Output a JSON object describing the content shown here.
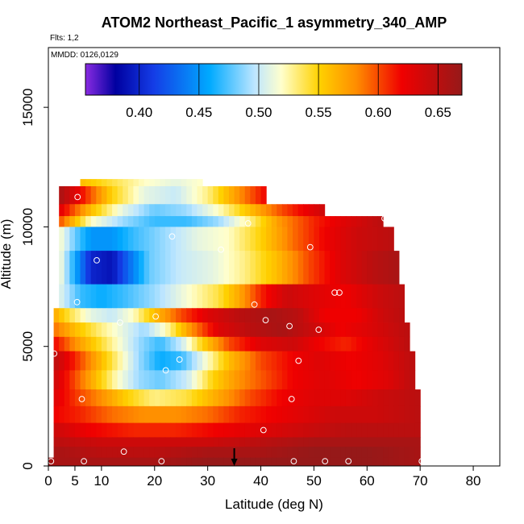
{
  "chart_data": {
    "type": "heatmap",
    "title": "ATOM2 Northeast_Pacific_1 asymmetry_340_AMP",
    "flights_label": "Flts: 1,2",
    "mmdd_label": "MMDD: 0126,0129",
    "xlabel": "Latitude (deg N)",
    "ylabel": "Altitude (m)",
    "xlim": [
      0,
      85
    ],
    "ylim": [
      0,
      17500
    ],
    "x_ticks": [
      0,
      5,
      10,
      20,
      30,
      40,
      50,
      60,
      70,
      80
    ],
    "y_ticks": [
      0,
      5000,
      10000,
      15000
    ],
    "colorbar": {
      "range": [
        0.355,
        0.67
      ],
      "ticks": [
        0.4,
        0.45,
        0.5,
        0.55,
        0.6,
        0.65
      ],
      "tick_labels": [
        "0.40",
        "0.45",
        "0.50",
        "0.55",
        "0.60",
        "0.65"
      ]
    },
    "marker_latitude": 35,
    "bands": [
      {
        "alt_range": [
          11700,
          12000
        ],
        "lat_range": [
          6,
          29
        ],
        "profile": [
          [
            6,
            0.56
          ],
          [
            12,
            0.54
          ],
          [
            18,
            0.52
          ],
          [
            24,
            0.51
          ],
          [
            29,
            0.52
          ]
        ]
      },
      {
        "alt_range": [
          10950,
          11700
        ],
        "lat_range": [
          2,
          41
        ],
        "profile": [
          [
            2,
            0.66
          ],
          [
            6,
            0.62
          ],
          [
            12,
            0.55
          ],
          [
            18,
            0.51
          ],
          [
            24,
            0.5
          ],
          [
            30,
            0.53
          ],
          [
            36,
            0.58
          ],
          [
            41,
            0.62
          ]
        ]
      },
      {
        "alt_range": [
          10450,
          10950
        ],
        "lat_range": [
          2,
          52
        ],
        "profile": [
          [
            2,
            0.63
          ],
          [
            8,
            0.56
          ],
          [
            14,
            0.51
          ],
          [
            20,
            0.48
          ],
          [
            26,
            0.49
          ],
          [
            32,
            0.52
          ],
          [
            38,
            0.56
          ],
          [
            44,
            0.6
          ],
          [
            52,
            0.64
          ]
        ]
      },
      {
        "alt_range": [
          10000,
          10450
        ],
        "lat_range": [
          2,
          63
        ],
        "profile": [
          [
            2,
            0.6
          ],
          [
            8,
            0.52
          ],
          [
            14,
            0.49
          ],
          [
            20,
            0.47
          ],
          [
            26,
            0.47
          ],
          [
            32,
            0.49
          ],
          [
            38,
            0.53
          ],
          [
            44,
            0.58
          ],
          [
            50,
            0.61
          ],
          [
            56,
            0.63
          ],
          [
            63,
            0.65
          ]
        ]
      },
      {
        "alt_range": [
          9000,
          10000
        ],
        "lat_range": [
          2,
          65
        ],
        "profile": [
          [
            2,
            0.52
          ],
          [
            5,
            0.48
          ],
          [
            8,
            0.45
          ],
          [
            12,
            0.45
          ],
          [
            16,
            0.47
          ],
          [
            22,
            0.49
          ],
          [
            28,
            0.51
          ],
          [
            34,
            0.52
          ],
          [
            40,
            0.55
          ],
          [
            46,
            0.59
          ],
          [
            52,
            0.62
          ],
          [
            58,
            0.64
          ],
          [
            65,
            0.65
          ]
        ]
      },
      {
        "alt_range": [
          7600,
          9000
        ],
        "lat_range": [
          2,
          66
        ],
        "profile": [
          [
            2,
            0.52
          ],
          [
            5,
            0.46
          ],
          [
            8,
            0.4
          ],
          [
            12,
            0.39
          ],
          [
            15,
            0.43
          ],
          [
            19,
            0.48
          ],
          [
            25,
            0.5
          ],
          [
            31,
            0.51
          ],
          [
            37,
            0.53
          ],
          [
            43,
            0.56
          ],
          [
            49,
            0.6
          ],
          [
            55,
            0.63
          ],
          [
            61,
            0.65
          ],
          [
            66,
            0.66
          ]
        ]
      },
      {
        "alt_range": [
          6600,
          7600
        ],
        "lat_range": [
          2,
          67
        ],
        "profile": [
          [
            2,
            0.51
          ],
          [
            6,
            0.47
          ],
          [
            10,
            0.46
          ],
          [
            14,
            0.47
          ],
          [
            20,
            0.49
          ],
          [
            27,
            0.52
          ],
          [
            32,
            0.54
          ],
          [
            36,
            0.57
          ],
          [
            40,
            0.61
          ],
          [
            45,
            0.64
          ],
          [
            50,
            0.63
          ],
          [
            56,
            0.62
          ],
          [
            62,
            0.64
          ],
          [
            67,
            0.65
          ]
        ]
      },
      {
        "alt_range": [
          6000,
          6600
        ],
        "lat_range": [
          1,
          67
        ],
        "profile": [
          [
            1,
            0.57
          ],
          [
            4,
            0.54
          ],
          [
            8,
            0.51
          ],
          [
            12,
            0.5
          ],
          [
            16,
            0.52
          ],
          [
            20,
            0.56
          ],
          [
            25,
            0.6
          ],
          [
            30,
            0.63
          ],
          [
            36,
            0.65
          ],
          [
            42,
            0.66
          ],
          [
            47,
            0.65
          ],
          [
            52,
            0.62
          ],
          [
            58,
            0.62
          ],
          [
            63,
            0.64
          ],
          [
            67,
            0.65
          ]
        ]
      },
      {
        "alt_range": [
          5400,
          6000
        ],
        "lat_range": [
          1,
          68
        ],
        "profile": [
          [
            1,
            0.59
          ],
          [
            5,
            0.56
          ],
          [
            10,
            0.53
          ],
          [
            14,
            0.51
          ],
          [
            18,
            0.49
          ],
          [
            22,
            0.52
          ],
          [
            27,
            0.58
          ],
          [
            32,
            0.63
          ],
          [
            38,
            0.65
          ],
          [
            44,
            0.66
          ],
          [
            50,
            0.64
          ],
          [
            55,
            0.62
          ],
          [
            60,
            0.63
          ],
          [
            64,
            0.64
          ],
          [
            68,
            0.65
          ]
        ]
      },
      {
        "alt_range": [
          4800,
          5400
        ],
        "lat_range": [
          1,
          68
        ],
        "profile": [
          [
            1,
            0.62
          ],
          [
            5,
            0.58
          ],
          [
            9,
            0.55
          ],
          [
            13,
            0.52
          ],
          [
            17,
            0.49
          ],
          [
            21,
            0.47
          ],
          [
            25,
            0.5
          ],
          [
            29,
            0.55
          ],
          [
            34,
            0.6
          ],
          [
            40,
            0.63
          ],
          [
            46,
            0.64
          ],
          [
            51,
            0.62
          ],
          [
            56,
            0.61
          ],
          [
            62,
            0.63
          ],
          [
            68,
            0.65
          ]
        ]
      },
      {
        "alt_range": [
          4000,
          4800
        ],
        "lat_range": [
          1,
          69
        ],
        "profile": [
          [
            1,
            0.65
          ],
          [
            5,
            0.61
          ],
          [
            9,
            0.57
          ],
          [
            13,
            0.53
          ],
          [
            17,
            0.49
          ],
          [
            21,
            0.46
          ],
          [
            25,
            0.47
          ],
          [
            29,
            0.51
          ],
          [
            34,
            0.56
          ],
          [
            40,
            0.6
          ],
          [
            46,
            0.62
          ],
          [
            51,
            0.63
          ],
          [
            57,
            0.62
          ],
          [
            63,
            0.63
          ],
          [
            69,
            0.65
          ]
        ]
      },
      {
        "alt_range": [
          3200,
          4000
        ],
        "lat_range": [
          1,
          69
        ],
        "profile": [
          [
            1,
            0.64
          ],
          [
            5,
            0.6
          ],
          [
            9,
            0.56
          ],
          [
            13,
            0.52
          ],
          [
            17,
            0.49
          ],
          [
            21,
            0.48
          ],
          [
            26,
            0.5
          ],
          [
            31,
            0.55
          ],
          [
            36,
            0.58
          ],
          [
            41,
            0.6
          ],
          [
            46,
            0.62
          ],
          [
            52,
            0.63
          ],
          [
            58,
            0.62
          ],
          [
            64,
            0.63
          ],
          [
            69,
            0.65
          ]
        ]
      },
      {
        "alt_range": [
          2500,
          3200
        ],
        "lat_range": [
          1,
          70
        ],
        "profile": [
          [
            1,
            0.63
          ],
          [
            6,
            0.6
          ],
          [
            10,
            0.58
          ],
          [
            15,
            0.55
          ],
          [
            20,
            0.53
          ],
          [
            26,
            0.54
          ],
          [
            32,
            0.57
          ],
          [
            38,
            0.6
          ],
          [
            44,
            0.62
          ],
          [
            50,
            0.63
          ],
          [
            56,
            0.63
          ],
          [
            62,
            0.64
          ],
          [
            70,
            0.65
          ]
        ]
      },
      {
        "alt_range": [
          1800,
          2500
        ],
        "lat_range": [
          1,
          70
        ],
        "profile": [
          [
            1,
            0.62
          ],
          [
            6,
            0.61
          ],
          [
            12,
            0.59
          ],
          [
            18,
            0.58
          ],
          [
            24,
            0.58
          ],
          [
            30,
            0.59
          ],
          [
            36,
            0.61
          ],
          [
            42,
            0.62
          ],
          [
            48,
            0.63
          ],
          [
            54,
            0.64
          ],
          [
            62,
            0.64
          ],
          [
            70,
            0.65
          ]
        ]
      },
      {
        "alt_range": [
          1200,
          1800
        ],
        "lat_range": [
          1,
          70
        ],
        "profile": [
          [
            1,
            0.64
          ],
          [
            8,
            0.62
          ],
          [
            16,
            0.61
          ],
          [
            24,
            0.61
          ],
          [
            32,
            0.62
          ],
          [
            40,
            0.63
          ],
          [
            48,
            0.64
          ],
          [
            56,
            0.65
          ],
          [
            64,
            0.65
          ],
          [
            70,
            0.65
          ]
        ]
      },
      {
        "alt_range": [
          800,
          1200
        ],
        "lat_range": [
          1,
          70
        ],
        "profile": [
          [
            1,
            0.65
          ],
          [
            10,
            0.64
          ],
          [
            20,
            0.64
          ],
          [
            30,
            0.64
          ],
          [
            40,
            0.65
          ],
          [
            50,
            0.66
          ],
          [
            60,
            0.66
          ],
          [
            70,
            0.66
          ]
        ]
      },
      {
        "alt_range": [
          350,
          800
        ],
        "lat_range": [
          1,
          70
        ],
        "profile": [
          [
            1,
            0.66
          ],
          [
            10,
            0.65
          ],
          [
            20,
            0.65
          ],
          [
            30,
            0.66
          ],
          [
            40,
            0.66
          ],
          [
            50,
            0.67
          ],
          [
            60,
            0.67
          ],
          [
            70,
            0.66
          ]
        ]
      },
      {
        "alt_range": [
          0,
          350
        ],
        "lat_range": [
          0,
          70
        ],
        "profile": [
          [
            0,
            0.66
          ],
          [
            10,
            0.66
          ],
          [
            20,
            0.66
          ],
          [
            30,
            0.67
          ],
          [
            40,
            0.67
          ],
          [
            50,
            0.67
          ],
          [
            60,
            0.67
          ],
          [
            70,
            0.66
          ]
        ]
      }
    ],
    "points": [
      [
        0.5,
        200
      ],
      [
        6.7,
        200
      ],
      [
        21.3,
        200
      ],
      [
        46.2,
        200
      ],
      [
        52.1,
        200
      ],
      [
        56.5,
        200
      ],
      [
        70.3,
        200
      ],
      [
        14.2,
        600
      ],
      [
        40.5,
        1500
      ],
      [
        6.3,
        2800
      ],
      [
        45.8,
        2800
      ],
      [
        22.1,
        4000
      ],
      [
        24.7,
        4450
      ],
      [
        47.1,
        4400
      ],
      [
        1.1,
        4700
      ],
      [
        13.5,
        6000
      ],
      [
        40.9,
        6100
      ],
      [
        45.4,
        5850
      ],
      [
        50.9,
        5700
      ],
      [
        20.2,
        6250
      ],
      [
        5.4,
        6850
      ],
      [
        53.9,
        7250
      ],
      [
        54.8,
        7250
      ],
      [
        38.8,
        6750
      ],
      [
        9.1,
        8600
      ],
      [
        32.5,
        9050
      ],
      [
        49.3,
        9150
      ],
      [
        23.3,
        9600
      ],
      [
        37.6,
        10150
      ],
      [
        63.3,
        10350
      ],
      [
        5.5,
        11250
      ]
    ]
  }
}
